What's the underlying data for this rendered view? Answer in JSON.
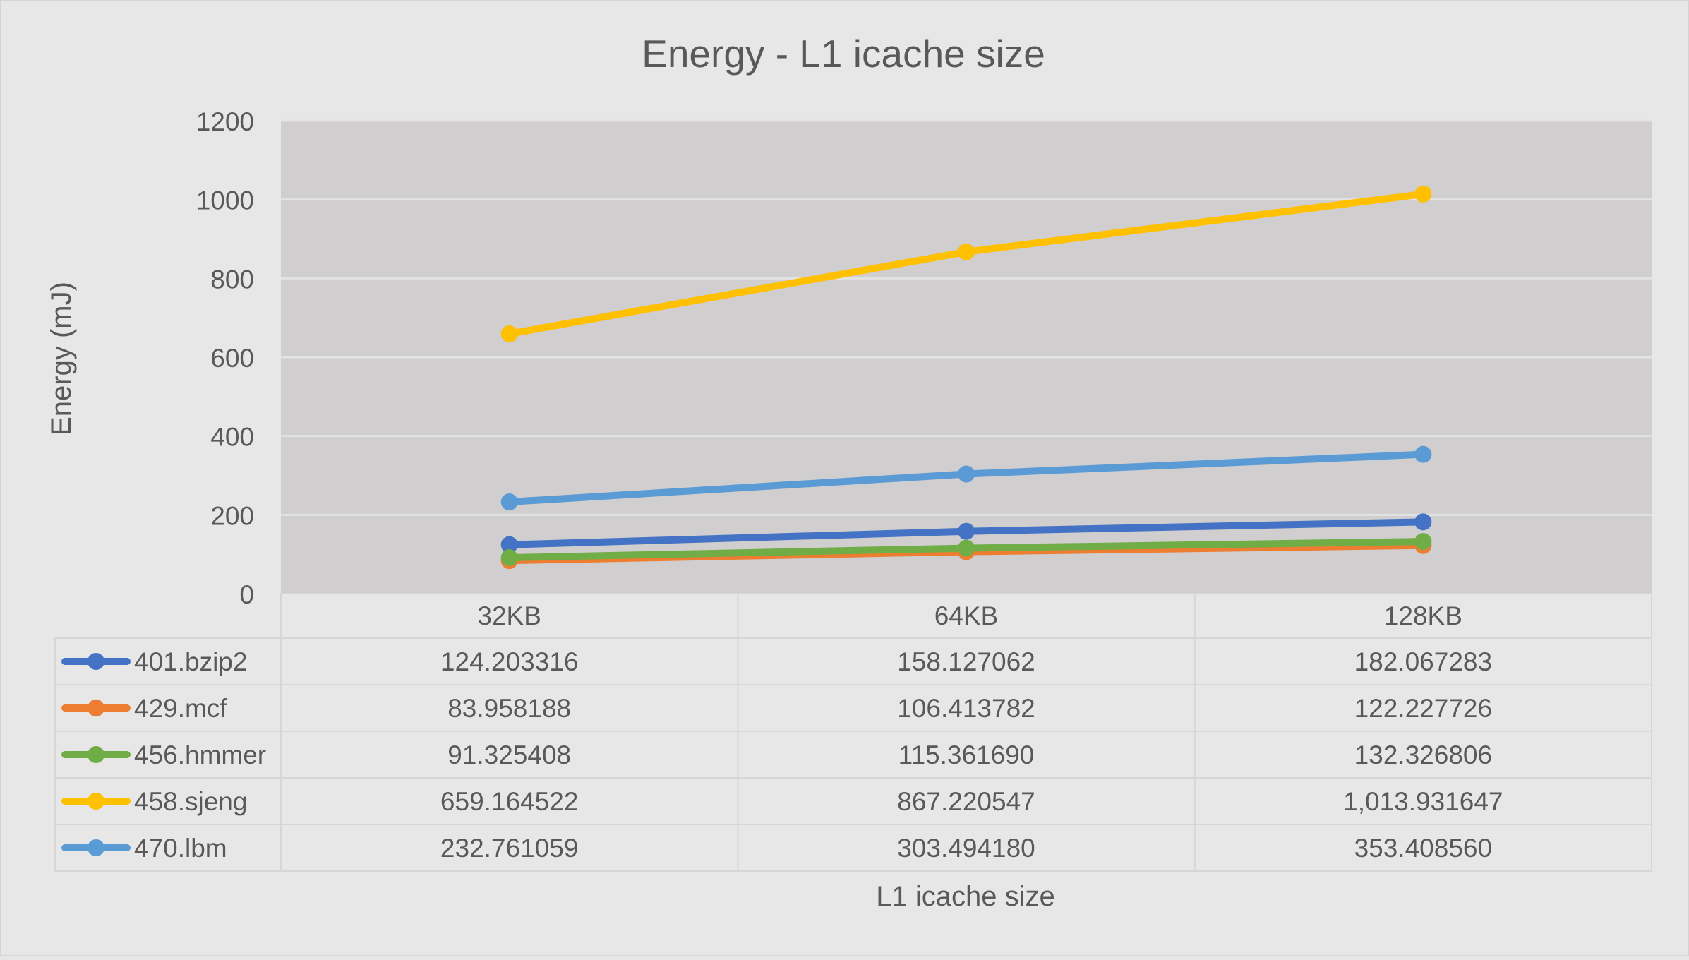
{
  "chart_data": {
    "type": "line",
    "title": "Energy - L1 icache size",
    "xlabel": "L1 icache size",
    "ylabel": "Energy (mJ)",
    "ylim": [
      0,
      1200
    ],
    "y_ticks": [
      "0",
      "200",
      "400",
      "600",
      "800",
      "1000",
      "1200"
    ],
    "categories": [
      "32KB",
      "64KB",
      "128KB"
    ],
    "grid": true,
    "legend": "data-table-left",
    "series": [
      {
        "name": "401.bzip2",
        "color": "#4472c4",
        "values": [
          124.203316,
          158.127062,
          182.067283
        ],
        "labels": [
          "124.203316",
          "158.127062",
          "182.067283"
        ]
      },
      {
        "name": "429.mcf",
        "color": "#ed7d31",
        "values": [
          83.958188,
          106.413782,
          122.227726
        ],
        "labels": [
          "83.958188",
          "106.413782",
          "122.227726"
        ]
      },
      {
        "name": "456.hmmer",
        "color": "#70ad47",
        "values": [
          91.325408,
          115.36169,
          132.326806
        ],
        "labels": [
          "91.325408",
          "115.361690",
          "132.326806"
        ]
      },
      {
        "name": "458.sjeng",
        "color": "#ffc000",
        "values": [
          659.164522,
          867.220547,
          1013.931647
        ],
        "labels": [
          "659.164522",
          "867.220547",
          "1,013.931647"
        ]
      },
      {
        "name": "470.lbm",
        "color": "#5b9bd5",
        "values": [
          232.761059,
          303.49418,
          353.40856
        ],
        "labels": [
          "232.761059",
          "303.494180",
          "353.408560"
        ]
      }
    ]
  }
}
